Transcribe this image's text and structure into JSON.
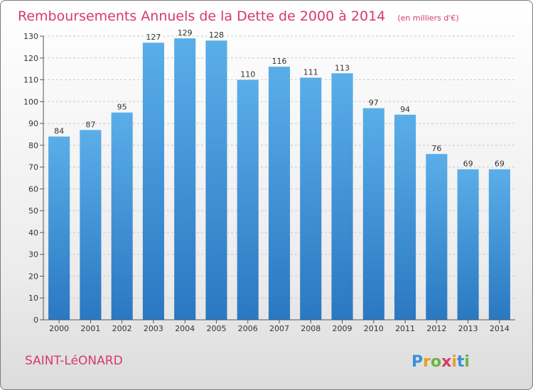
{
  "chart_data": {
    "type": "bar",
    "title": "Remboursements Annuels de la Dette de 2000 à 2014",
    "subtitle": "(en milliers d'€)",
    "categories": [
      "2000",
      "2001",
      "2002",
      "2003",
      "2004",
      "2005",
      "2006",
      "2007",
      "2008",
      "2009",
      "2010",
      "2011",
      "2012",
      "2013",
      "2014"
    ],
    "values": [
      84,
      87,
      95,
      127,
      129,
      128,
      110,
      116,
      111,
      113,
      97,
      94,
      76,
      69,
      69
    ],
    "ylim": [
      0,
      130
    ],
    "yticks": [
      0,
      10,
      20,
      30,
      40,
      50,
      60,
      70,
      80,
      90,
      100,
      110,
      120,
      130
    ],
    "xlabel": "",
    "ylabel": "",
    "grid": true
  },
  "commune": "SAINT-LéONARD",
  "logo": {
    "letters": [
      "P",
      "r",
      "o",
      "x",
      "i",
      "t",
      "i"
    ],
    "colors": [
      "#3a8fd8",
      "#e8a020",
      "#6cb33f",
      "#d63a6b",
      "#e8a020",
      "#3a8fd8",
      "#6cb33f"
    ]
  },
  "colors": {
    "bar_top": "#5aaee8",
    "bar_bottom": "#2a78c2",
    "title": "#d63a6b"
  }
}
